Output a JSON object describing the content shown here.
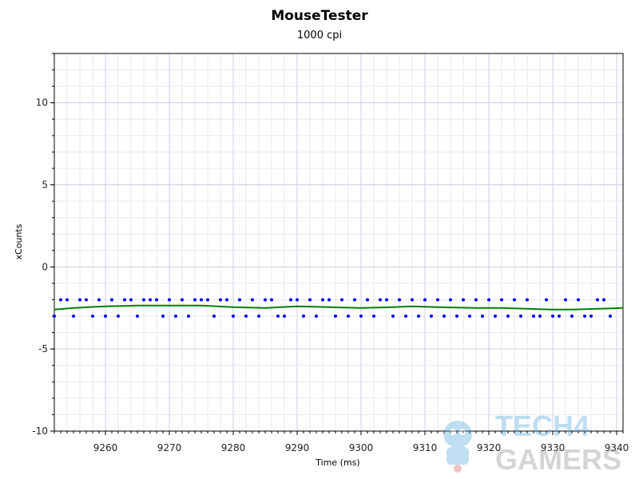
{
  "chart_data": {
    "type": "scatter",
    "title": "MouseTester",
    "subtitle": "1000 cpi",
    "xlabel": "Time (ms)",
    "ylabel": "xCounts",
    "xlim": [
      9252,
      9341
    ],
    "ylim": [
      -10,
      13
    ],
    "xticks": [
      9260,
      9270,
      9280,
      9290,
      9300,
      9310,
      9320,
      9330,
      9340
    ],
    "yticks": [
      -10,
      -5,
      0,
      5,
      10
    ],
    "ytick_labels": [
      "-10",
      "-5",
      "0",
      "5",
      "10"
    ],
    "grid": true,
    "series": [
      {
        "kind": "points",
        "color": "#0000ff",
        "points": [
          [
            9252,
            -3
          ],
          [
            9253,
            -2
          ],
          [
            9254,
            -2
          ],
          [
            9255,
            -3
          ],
          [
            9256,
            -2
          ],
          [
            9257,
            -2
          ],
          [
            9258,
            -3
          ],
          [
            9259,
            -2
          ],
          [
            9260,
            -3
          ],
          [
            9261,
            -2
          ],
          [
            9262,
            -3
          ],
          [
            9263,
            -2
          ],
          [
            9264,
            -2
          ],
          [
            9265,
            -3
          ],
          [
            9266,
            -2
          ],
          [
            9267,
            -2
          ],
          [
            9268,
            -2
          ],
          [
            9269,
            -3
          ],
          [
            9270,
            -2
          ],
          [
            9271,
            -3
          ],
          [
            9272,
            -2
          ],
          [
            9273,
            -3
          ],
          [
            9274,
            -2
          ],
          [
            9275,
            -2
          ],
          [
            9276,
            -2
          ],
          [
            9277,
            -3
          ],
          [
            9278,
            -2
          ],
          [
            9279,
            -2
          ],
          [
            9280,
            -3
          ],
          [
            9281,
            -2
          ],
          [
            9282,
            -3
          ],
          [
            9283,
            -2
          ],
          [
            9284,
            -3
          ],
          [
            9285,
            -2
          ],
          [
            9286,
            -2
          ],
          [
            9287,
            -3
          ],
          [
            9288,
            -3
          ],
          [
            9289,
            -2
          ],
          [
            9290,
            -2
          ],
          [
            9291,
            -3
          ],
          [
            9292,
            -2
          ],
          [
            9293,
            -3
          ],
          [
            9294,
            -2
          ],
          [
            9295,
            -2
          ],
          [
            9296,
            -3
          ],
          [
            9297,
            -2
          ],
          [
            9298,
            -3
          ],
          [
            9299,
            -2
          ],
          [
            9300,
            -3
          ],
          [
            9301,
            -2
          ],
          [
            9302,
            -3
          ],
          [
            9303,
            -2
          ],
          [
            9304,
            -2
          ],
          [
            9305,
            -3
          ],
          [
            9306,
            -2
          ],
          [
            9307,
            -3
          ],
          [
            9308,
            -2
          ],
          [
            9309,
            -3
          ],
          [
            9310,
            -2
          ],
          [
            9311,
            -3
          ],
          [
            9312,
            -2
          ],
          [
            9313,
            -3
          ],
          [
            9314,
            -2
          ],
          [
            9315,
            -3
          ],
          [
            9316,
            -2
          ],
          [
            9317,
            -3
          ],
          [
            9318,
            -2
          ],
          [
            9319,
            -3
          ],
          [
            9320,
            -2
          ],
          [
            9321,
            -3
          ],
          [
            9322,
            -2
          ],
          [
            9323,
            -3
          ],
          [
            9324,
            -2
          ],
          [
            9325,
            -3
          ],
          [
            9326,
            -2
          ],
          [
            9327,
            -3
          ],
          [
            9328,
            -3
          ],
          [
            9329,
            -2
          ],
          [
            9330,
            -3
          ],
          [
            9331,
            -3
          ],
          [
            9332,
            -2
          ],
          [
            9333,
            -3
          ],
          [
            9334,
            -2
          ],
          [
            9335,
            -3
          ],
          [
            9336,
            -3
          ],
          [
            9337,
            -2
          ],
          [
            9338,
            -2
          ],
          [
            9339,
            -3
          ]
        ]
      },
      {
        "kind": "line",
        "color": "#008000",
        "points": [
          [
            9252,
            -2.6
          ],
          [
            9255,
            -2.5
          ],
          [
            9260,
            -2.4
          ],
          [
            9265,
            -2.35
          ],
          [
            9270,
            -2.35
          ],
          [
            9275,
            -2.35
          ],
          [
            9280,
            -2.45
          ],
          [
            9285,
            -2.5
          ],
          [
            9290,
            -2.4
          ],
          [
            9295,
            -2.45
          ],
          [
            9300,
            -2.5
          ],
          [
            9305,
            -2.45
          ],
          [
            9308,
            -2.4
          ],
          [
            9312,
            -2.45
          ],
          [
            9318,
            -2.5
          ],
          [
            9322,
            -2.5
          ],
          [
            9326,
            -2.55
          ],
          [
            9330,
            -2.6
          ],
          [
            9333,
            -2.6
          ],
          [
            9337,
            -2.55
          ],
          [
            9341,
            -2.5
          ]
        ]
      }
    ]
  },
  "watermark": {
    "line1": "TECH4",
    "line2": "GAMERS"
  }
}
